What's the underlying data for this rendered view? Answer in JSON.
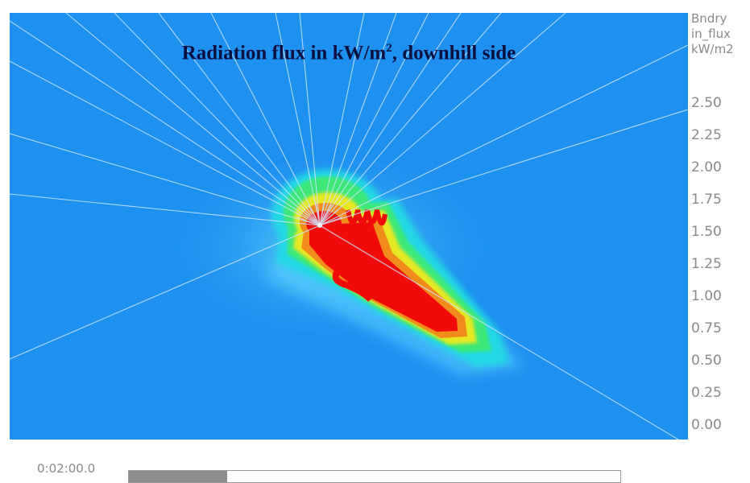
{
  "title": {
    "main": "Radiation flux in kW/m",
    "sup": "2",
    "rest": ", downhill side"
  },
  "legend": {
    "title": "Bndry\nin_flux\nkW/m2",
    "ticks": [
      "2.50",
      "2.25",
      "2.00",
      "1.75",
      "1.50",
      "1.25",
      "1.00",
      "0.75",
      "0.50",
      "0.25",
      "0.00"
    ],
    "colors": {
      "background": "#1e90f0",
      "cyan": "#24d8e4",
      "green": "#3ce878",
      "yellow": "#e8e820",
      "orange": "#f08c1c",
      "red": "#f00a0a"
    }
  },
  "playback": {
    "time": "0:02:00.0",
    "progress_percent": 20
  }
}
